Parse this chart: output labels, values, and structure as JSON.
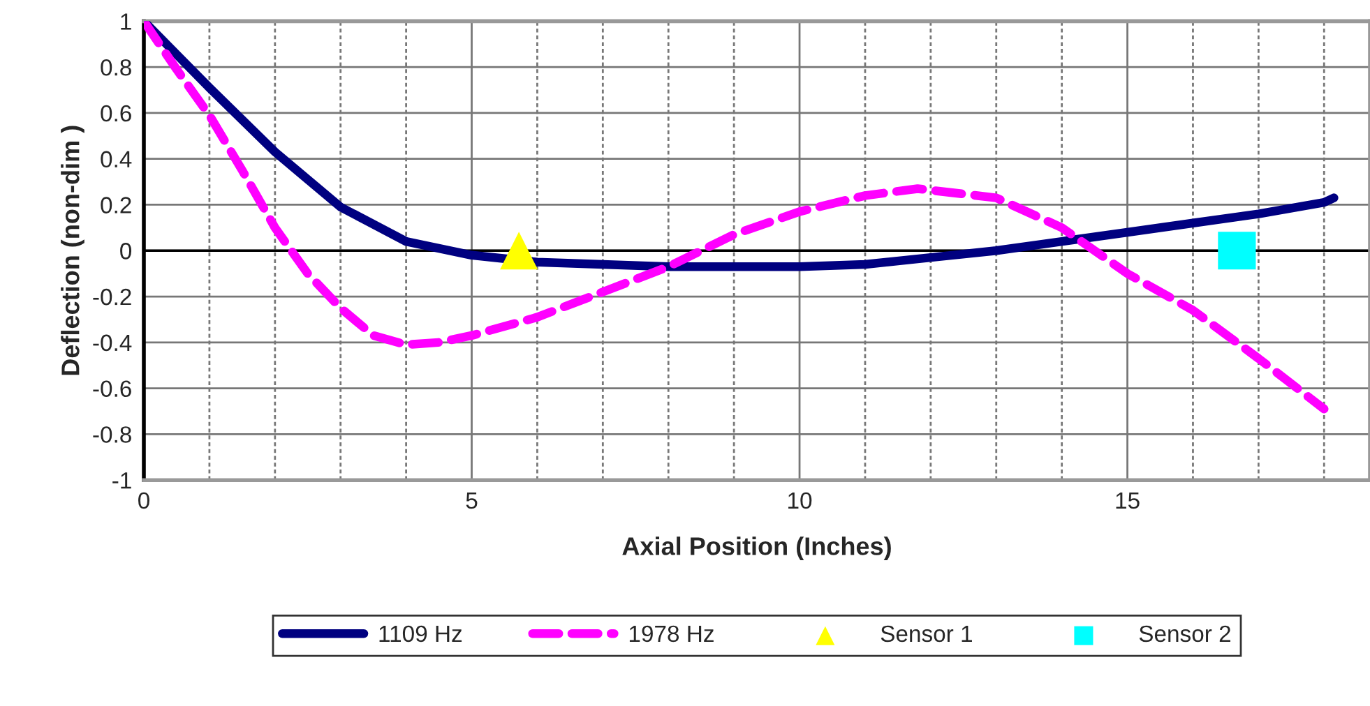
{
  "chart_data": {
    "type": "line",
    "xlabel": "Axial Position (Inches)",
    "ylabel": "Deflection (non-dim )",
    "xlim": [
      0,
      18.7
    ],
    "ylim": [
      -1,
      1
    ],
    "xticks": [
      0,
      {
        "value": 1,
        "label": null
      },
      {
        "value": 2,
        "label": null
      },
      {
        "value": 3,
        "label": null
      },
      {
        "value": 4,
        "label": null
      },
      5,
      {
        "value": 6,
        "label": null
      },
      {
        "value": 7,
        "label": null
      },
      {
        "value": 8,
        "label": null
      },
      {
        "value": 9,
        "label": null
      },
      10,
      {
        "value": 11,
        "label": null
      },
      {
        "value": 12,
        "label": null
      },
      {
        "value": 13,
        "label": null
      },
      {
        "value": 14,
        "label": null
      },
      15,
      {
        "value": 16,
        "label": null
      },
      {
        "value": 17,
        "label": null
      },
      {
        "value": 18,
        "label": null
      }
    ],
    "yticks": [
      -1,
      -0.8,
      -0.6,
      -0.4,
      -0.2,
      0,
      0.2,
      0.4,
      0.6,
      0.8,
      1
    ],
    "grid": true,
    "legend": "bottom",
    "series": [
      {
        "name": "1109 Hz",
        "color": "#000080",
        "line_style": "solid",
        "marker": "none",
        "x": [
          0,
          1,
          2,
          3,
          4,
          5,
          6,
          7,
          8,
          9,
          10,
          11,
          12,
          13,
          14,
          15,
          16,
          17,
          18,
          18.15
        ],
        "values": [
          1,
          0.71,
          0.43,
          0.19,
          0.04,
          -0.02,
          -0.05,
          -0.06,
          -0.07,
          -0.07,
          -0.07,
          -0.06,
          -0.03,
          0.0,
          0.04,
          0.08,
          0.12,
          0.16,
          0.21,
          0.23
        ]
      },
      {
        "name": "1978 Hz",
        "color": "#ff00ff",
        "line_style": "dashed",
        "marker": "none",
        "x": [
          0,
          0.5,
          1,
          1.5,
          2,
          2.5,
          3,
          3.5,
          4,
          4.5,
          5,
          6,
          7,
          8,
          9,
          10,
          11,
          11.8,
          13,
          14,
          15,
          16,
          17,
          18
        ],
        "values": [
          1,
          0.79,
          0.59,
          0.35,
          0.1,
          -0.1,
          -0.25,
          -0.37,
          -0.41,
          -0.4,
          -0.37,
          -0.29,
          -0.18,
          -0.07,
          0.07,
          0.17,
          0.24,
          0.27,
          0.23,
          0.1,
          -0.1,
          -0.26,
          -0.47,
          -0.69
        ]
      },
      {
        "name": "Sensor 1",
        "type": "scatter",
        "color": "#ffff00",
        "marker": "triangle",
        "x": [
          5.72
        ],
        "values": [
          0
        ]
      },
      {
        "name": "Sensor 2",
        "type": "scatter",
        "color": "#00ffff",
        "marker": "square",
        "x": [
          16.67
        ],
        "values": [
          0
        ]
      }
    ]
  }
}
